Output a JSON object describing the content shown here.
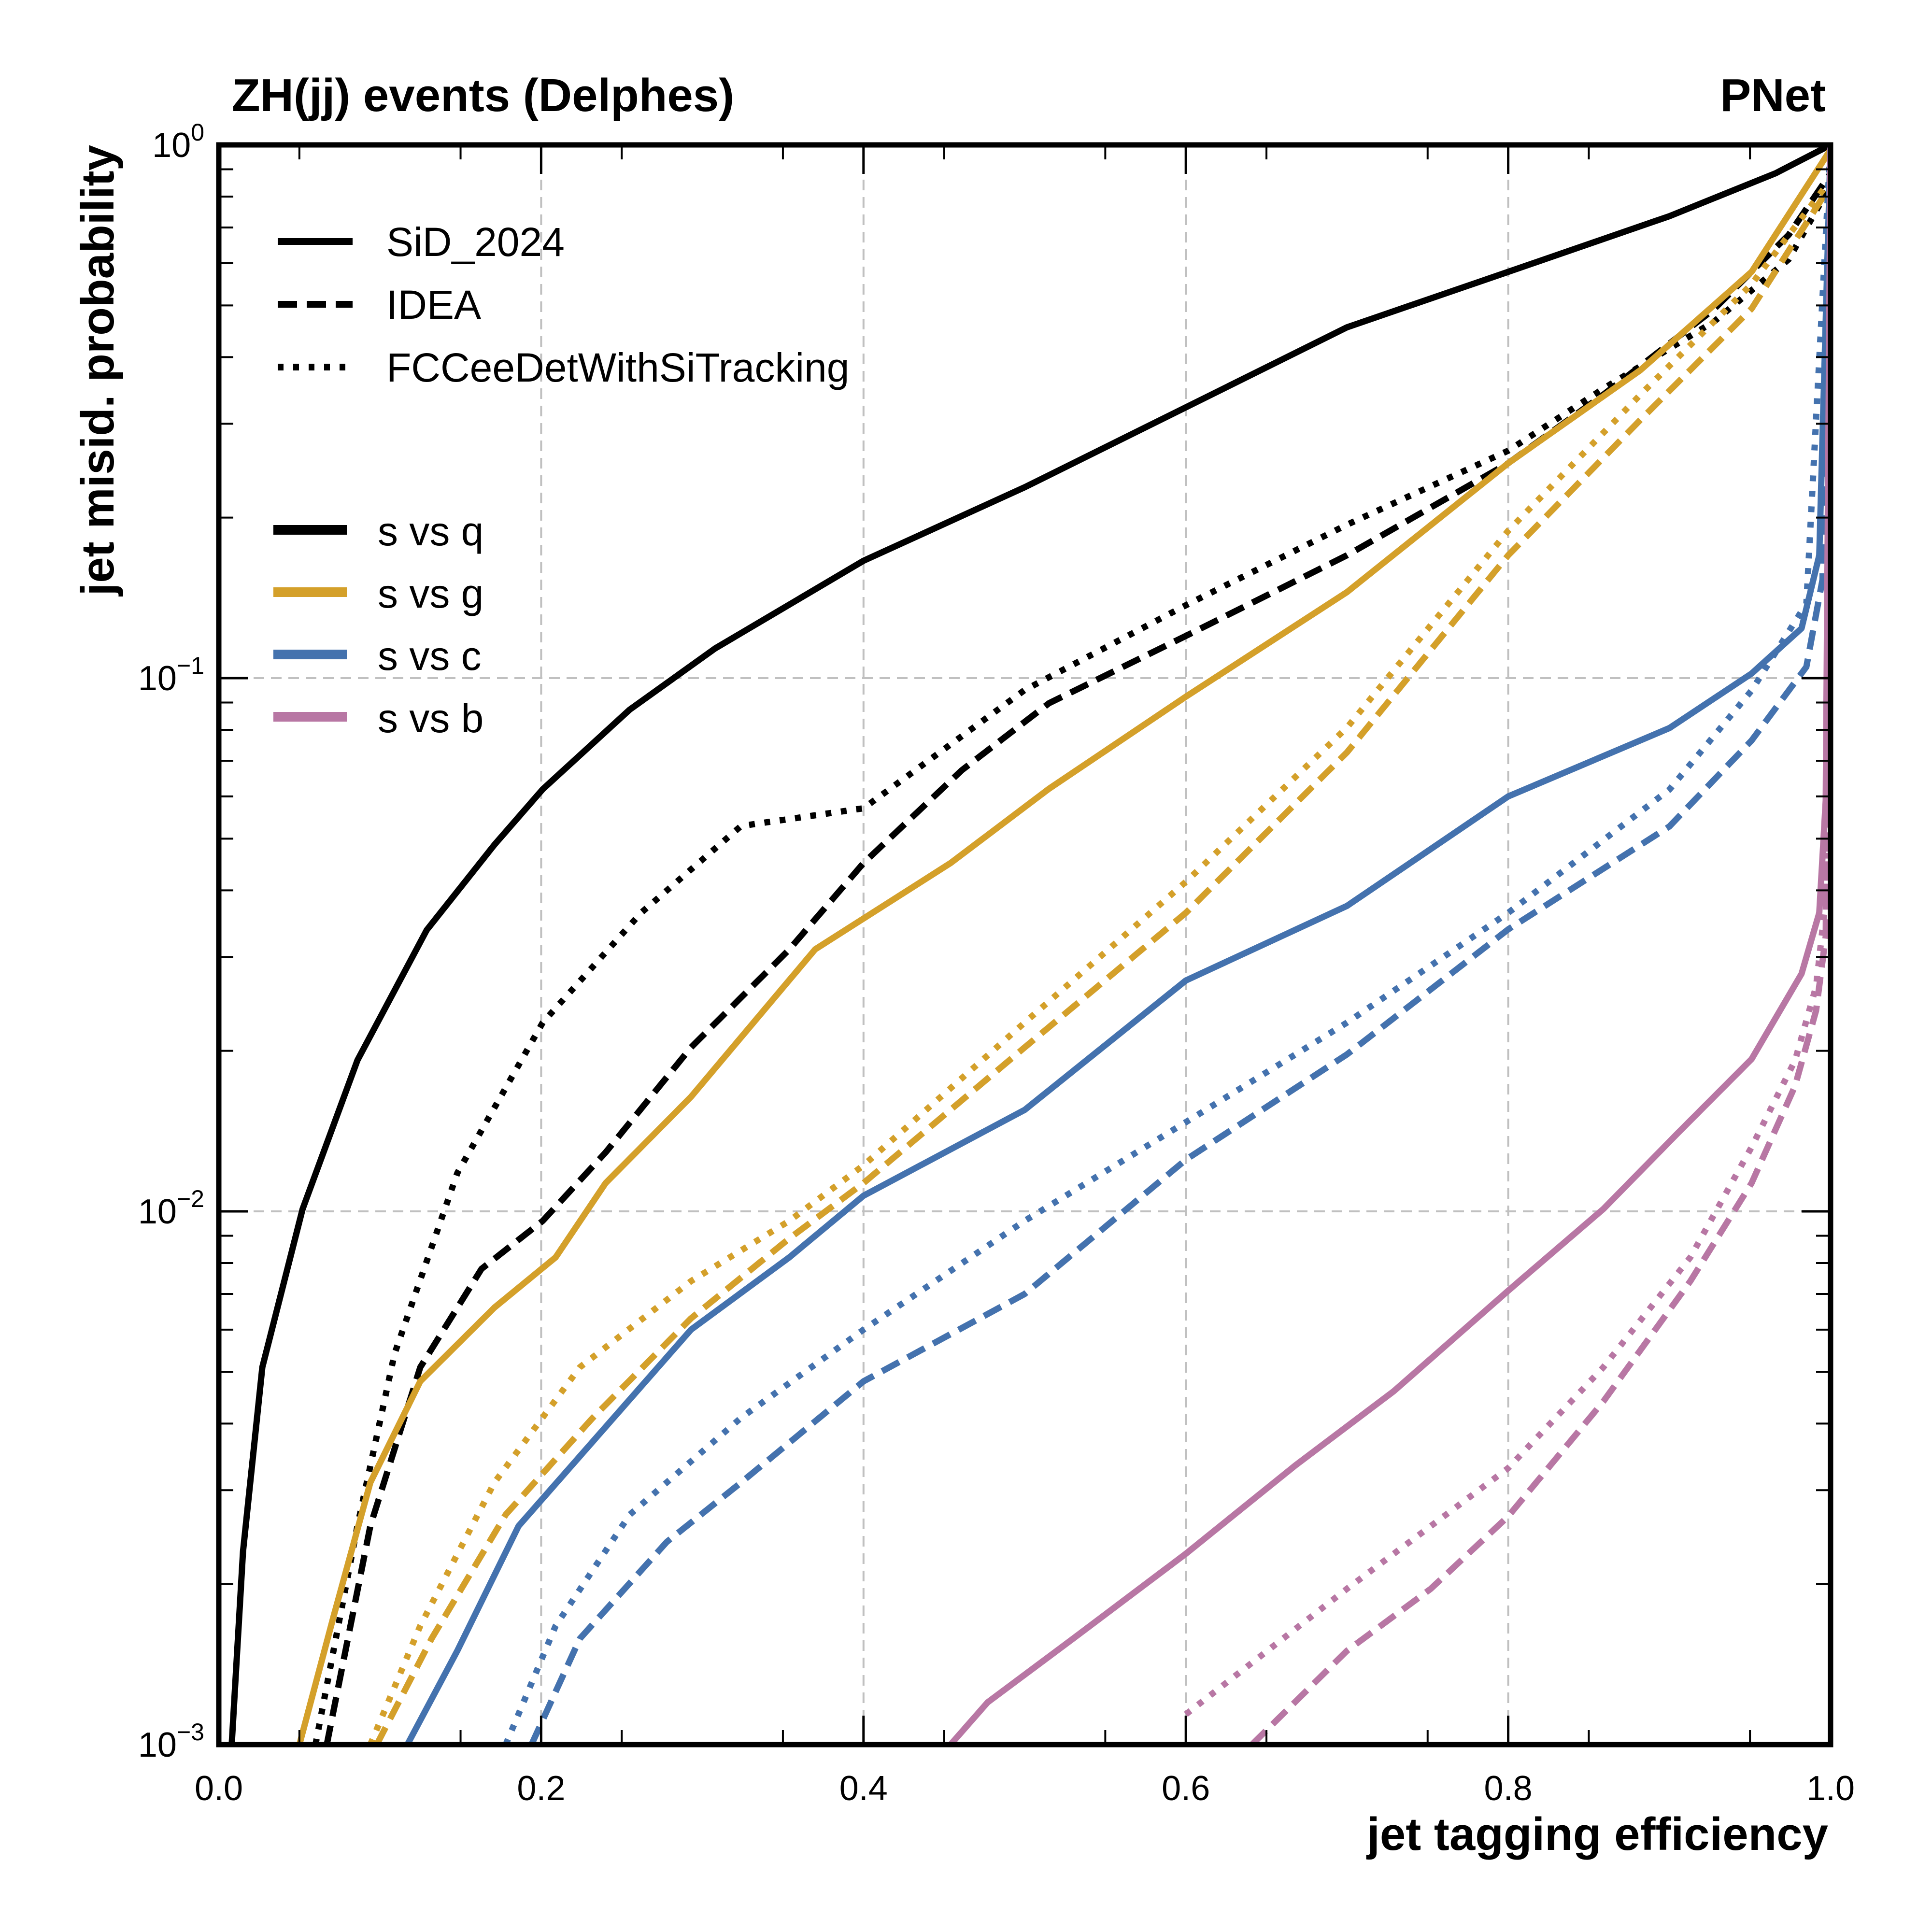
{
  "chart_data": {
    "type": "line",
    "title_left": "ZH(jj) events (Delphes)",
    "title_right": "PNet",
    "xlabel": "jet tagging efficiency",
    "ylabel": "jet misid. probability",
    "xlim": [
      0.0,
      1.0
    ],
    "ylim": [
      0.001,
      1.0
    ],
    "yscale": "log",
    "grid": true,
    "x_ticks": [
      {
        "value": 0.0,
        "label": "0.0"
      },
      {
        "value": 0.2,
        "label": "0.2"
      },
      {
        "value": 0.4,
        "label": "0.4"
      },
      {
        "value": 0.6,
        "label": "0.6"
      },
      {
        "value": 0.8,
        "label": "0.8"
      },
      {
        "value": 1.0,
        "label": "1.0"
      }
    ],
    "y_ticks": [
      {
        "value": 1.0,
        "base": "10",
        "exp": "0"
      },
      {
        "value": 0.1,
        "base": "10",
        "exp": "−1"
      },
      {
        "value": 0.01,
        "base": "10",
        "exp": "−2"
      },
      {
        "value": 0.001,
        "base": "10",
        "exp": "−3"
      }
    ],
    "legend_detectors": {
      "placement": "top-left",
      "entries": [
        {
          "label": "SiD_2024",
          "style": "solid"
        },
        {
          "label": "IDEA",
          "style": "dashed"
        },
        {
          "label": "FCCeeDetWithSiTracking",
          "style": "dotted"
        }
      ]
    },
    "legend_classes": {
      "placement": "upper-left",
      "entries": [
        {
          "label": "s vs q",
          "color": "#000000"
        },
        {
          "label": "s vs g",
          "color": "#D4A02A"
        },
        {
          "label": "s vs c",
          "color": "#4472AE"
        },
        {
          "label": "s vs b",
          "color": "#B877A4"
        }
      ]
    },
    "series": [
      {
        "name": "SiD_2024 s vs q",
        "detector": "SiD_2024",
        "class": "s vs q",
        "color": "#000000",
        "style": "solid",
        "x": [
          0.008,
          0.015,
          0.027,
          0.052,
          0.086,
          0.129,
          0.171,
          0.201,
          0.255,
          0.308,
          0.4,
          0.5,
          0.6,
          0.7,
          0.8,
          0.9,
          0.966,
          1.0
        ],
        "y": [
          0.001,
          0.0023,
          0.0051,
          0.0101,
          0.0192,
          0.0337,
          0.0487,
          0.0619,
          0.0873,
          0.1137,
          0.166,
          0.228,
          0.322,
          0.455,
          0.578,
          0.735,
          0.885,
          1.0
        ]
      },
      {
        "name": "IDEA s vs q",
        "detector": "IDEA",
        "class": "s vs q",
        "color": "#000000",
        "style": "dashed",
        "x": [
          0.067,
          0.094,
          0.125,
          0.163,
          0.201,
          0.24,
          0.293,
          0.354,
          0.4,
          0.461,
          0.515,
          0.6,
          0.7,
          0.8,
          0.859,
          0.928,
          0.974,
          1.0
        ],
        "y": [
          0.001,
          0.00257,
          0.0051,
          0.0078,
          0.0096,
          0.0129,
          0.0203,
          0.031,
          0.045,
          0.0672,
          0.0897,
          0.12,
          0.17,
          0.253,
          0.34,
          0.493,
          0.678,
          0.885
        ]
      },
      {
        "name": "FCCeeDetWithSiTracking s vs q",
        "detector": "FCCeeDetWithSiTracking",
        "class": "s vs q",
        "color": "#000000",
        "style": "dotted",
        "x": [
          0.06,
          0.086,
          0.109,
          0.148,
          0.201,
          0.262,
          0.324,
          0.4,
          0.5,
          0.6,
          0.7,
          0.8,
          0.859,
          0.928,
          0.974,
          1.0
        ],
        "y": [
          0.001,
          0.00257,
          0.0054,
          0.0118,
          0.0226,
          0.0363,
          0.0528,
          0.057,
          0.095,
          0.137,
          0.194,
          0.267,
          0.349,
          0.467,
          0.61,
          0.84
        ]
      },
      {
        "name": "SiD_2024 s vs g",
        "detector": "SiD_2024",
        "class": "s vs g",
        "color": "#D4A02A",
        "style": "solid",
        "x": [
          0.05,
          0.071,
          0.094,
          0.125,
          0.171,
          0.209,
          0.24,
          0.293,
          0.37,
          0.454,
          0.515,
          0.6,
          0.7,
          0.8,
          0.882,
          0.951,
          1.0
        ],
        "y": [
          0.001,
          0.00173,
          0.0031,
          0.0048,
          0.0066,
          0.0082,
          0.0113,
          0.0164,
          0.031,
          0.045,
          0.062,
          0.0923,
          0.145,
          0.253,
          0.378,
          0.578,
          0.98
        ]
      },
      {
        "name": "IDEA s vs g",
        "detector": "IDEA",
        "class": "s vs g",
        "color": "#D4A02A",
        "style": "dashed",
        "x": [
          0.098,
          0.132,
          0.178,
          0.232,
          0.293,
          0.354,
          0.4,
          0.5,
          0.6,
          0.7,
          0.8,
          0.882,
          0.951,
          1.0
        ],
        "y": [
          0.001,
          0.00158,
          0.0027,
          0.0041,
          0.0063,
          0.0089,
          0.0113,
          0.0203,
          0.0363,
          0.0726,
          0.17,
          0.305,
          0.493,
          0.84
        ]
      },
      {
        "name": "FCCeeDetWithSiTracking s vs g",
        "detector": "FCCeeDetWithSiTracking",
        "class": "s vs g",
        "color": "#D4A02A",
        "style": "dotted",
        "x": [
          0.094,
          0.125,
          0.171,
          0.224,
          0.293,
          0.354,
          0.4,
          0.5,
          0.6,
          0.7,
          0.8,
          0.882,
          0.951,
          1.0
        ],
        "y": [
          0.001,
          0.00167,
          0.0031,
          0.0051,
          0.0074,
          0.0096,
          0.0122,
          0.0226,
          0.0415,
          0.0808,
          0.189,
          0.34,
          0.548,
          0.86
        ]
      },
      {
        "name": "SiD_2024 s vs c",
        "detector": "SiD_2024",
        "class": "s vs c",
        "color": "#4472AE",
        "style": "solid",
        "x": [
          0.117,
          0.148,
          0.186,
          0.232,
          0.293,
          0.354,
          0.4,
          0.5,
          0.6,
          0.7,
          0.8,
          0.9,
          0.951,
          0.982,
          0.993,
          1.0
        ],
        "y": [
          0.001,
          0.0015,
          0.00257,
          0.0037,
          0.006,
          0.0082,
          0.0107,
          0.0155,
          0.0271,
          0.0374,
          0.06,
          0.0806,
          0.102,
          0.124,
          0.17,
          1.0
        ]
      },
      {
        "name": "IDEA s vs c",
        "detector": "IDEA",
        "class": "s vs c",
        "color": "#4472AE",
        "style": "dashed",
        "x": [
          0.194,
          0.224,
          0.278,
          0.324,
          0.4,
          0.5,
          0.6,
          0.7,
          0.8,
          0.9,
          0.951,
          0.985,
          0.995,
          1.0
        ],
        "y": [
          0.001,
          0.00158,
          0.0024,
          0.0031,
          0.0048,
          0.007,
          0.0125,
          0.0197,
          0.0338,
          0.0527,
          0.0764,
          0.105,
          0.153,
          1.0
        ]
      },
      {
        "name": "FCCeeDetWithSiTracking s vs c",
        "detector": "FCCeeDetWithSiTracking",
        "class": "s vs c",
        "color": "#4472AE",
        "style": "dotted",
        "x": [
          0.178,
          0.209,
          0.255,
          0.324,
          0.4,
          0.5,
          0.6,
          0.7,
          0.8,
          0.9,
          0.951,
          0.985,
          1.0
        ],
        "y": [
          0.001,
          0.00167,
          0.0027,
          0.0041,
          0.006,
          0.0096,
          0.0147,
          0.0226,
          0.0363,
          0.0618,
          0.0948,
          0.138,
          1.0
        ]
      },
      {
        "name": "SiD_2024 s vs b",
        "detector": "SiD_2024",
        "class": "s vs b",
        "color": "#B877A4",
        "style": "solid",
        "x": [
          0.454,
          0.477,
          0.53,
          0.6,
          0.668,
          0.729,
          0.8,
          0.859,
          0.905,
          0.951,
          0.982,
          0.993,
          0.997,
          1.0
        ],
        "y": [
          0.001,
          0.0012,
          0.00158,
          0.00228,
          0.00334,
          0.0046,
          0.0071,
          0.0101,
          0.014,
          0.0193,
          0.0279,
          0.0363,
          0.059,
          1.0
        ]
      },
      {
        "name": "IDEA s vs b",
        "detector": "IDEA",
        "class": "s vs b",
        "color": "#B877A4",
        "style": "dashed",
        "x": [
          0.641,
          0.7,
          0.752,
          0.8,
          0.859,
          0.913,
          0.951,
          0.978,
          0.991,
          0.997,
          1.0
        ],
        "y": [
          0.001,
          0.0015,
          0.00196,
          0.00268,
          0.0044,
          0.0074,
          0.0113,
          0.0172,
          0.0238,
          0.0328,
          1.0
        ]
      },
      {
        "name": "FCCeeDetWithSiTracking s vs b",
        "detector": "FCCeeDetWithSiTracking",
        "class": "s vs b",
        "color": "#B877A4",
        "style": "dotted",
        "x": [
          0.6,
          0.7,
          0.8,
          0.859,
          0.913,
          0.951,
          0.978,
          0.991,
          0.997,
          1.0
        ],
        "y": [
          0.00114,
          0.00196,
          0.0033,
          0.0051,
          0.0082,
          0.0132,
          0.0192,
          0.0264,
          0.0384,
          1.0
        ]
      }
    ]
  }
}
